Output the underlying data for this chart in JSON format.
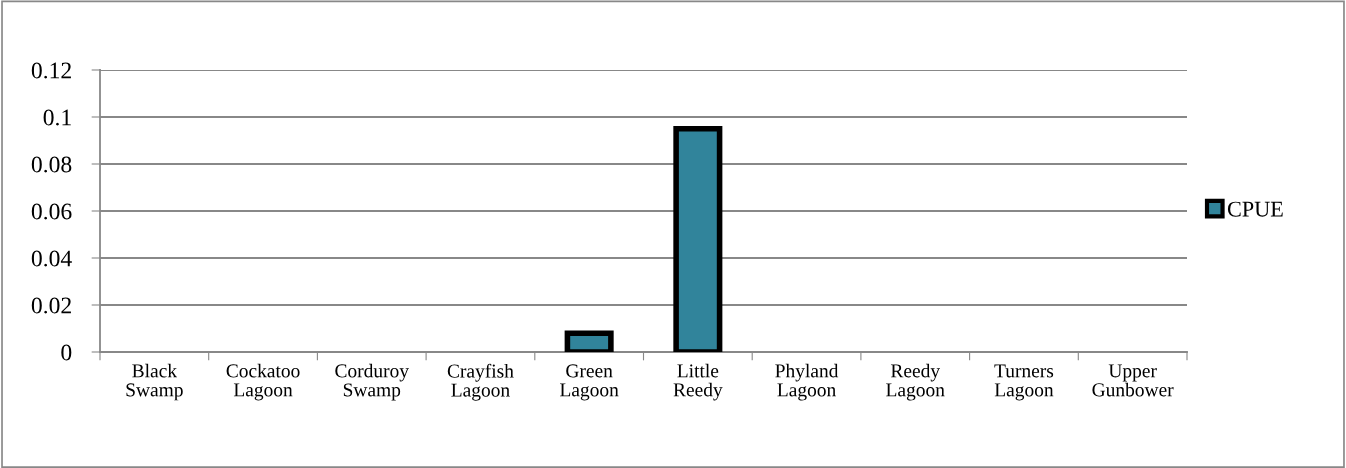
{
  "chart_data": {
    "type": "bar",
    "categories": [
      "Black\nSwamp",
      "Cockatoo\nLagoon",
      "Corduroy\nSwamp",
      "Crayfish\nLagoon",
      "Green\nLagoon",
      "Little\nReedy",
      "Phyland\nLagoon",
      "Reedy\nLagoon",
      "Turners\nLagoon",
      "Upper\nGunbower"
    ],
    "series": [
      {
        "name": "CPUE",
        "color": "#31849b",
        "values": [
          0,
          0,
          0,
          0,
          0.008,
          0.095,
          0,
          0,
          0,
          0
        ]
      }
    ],
    "ylim": [
      0,
      0.12
    ],
    "yticks": [
      0,
      0.02,
      0.04,
      0.06,
      0.08,
      0.1,
      0.12
    ],
    "grid": "y",
    "legend": "right"
  }
}
